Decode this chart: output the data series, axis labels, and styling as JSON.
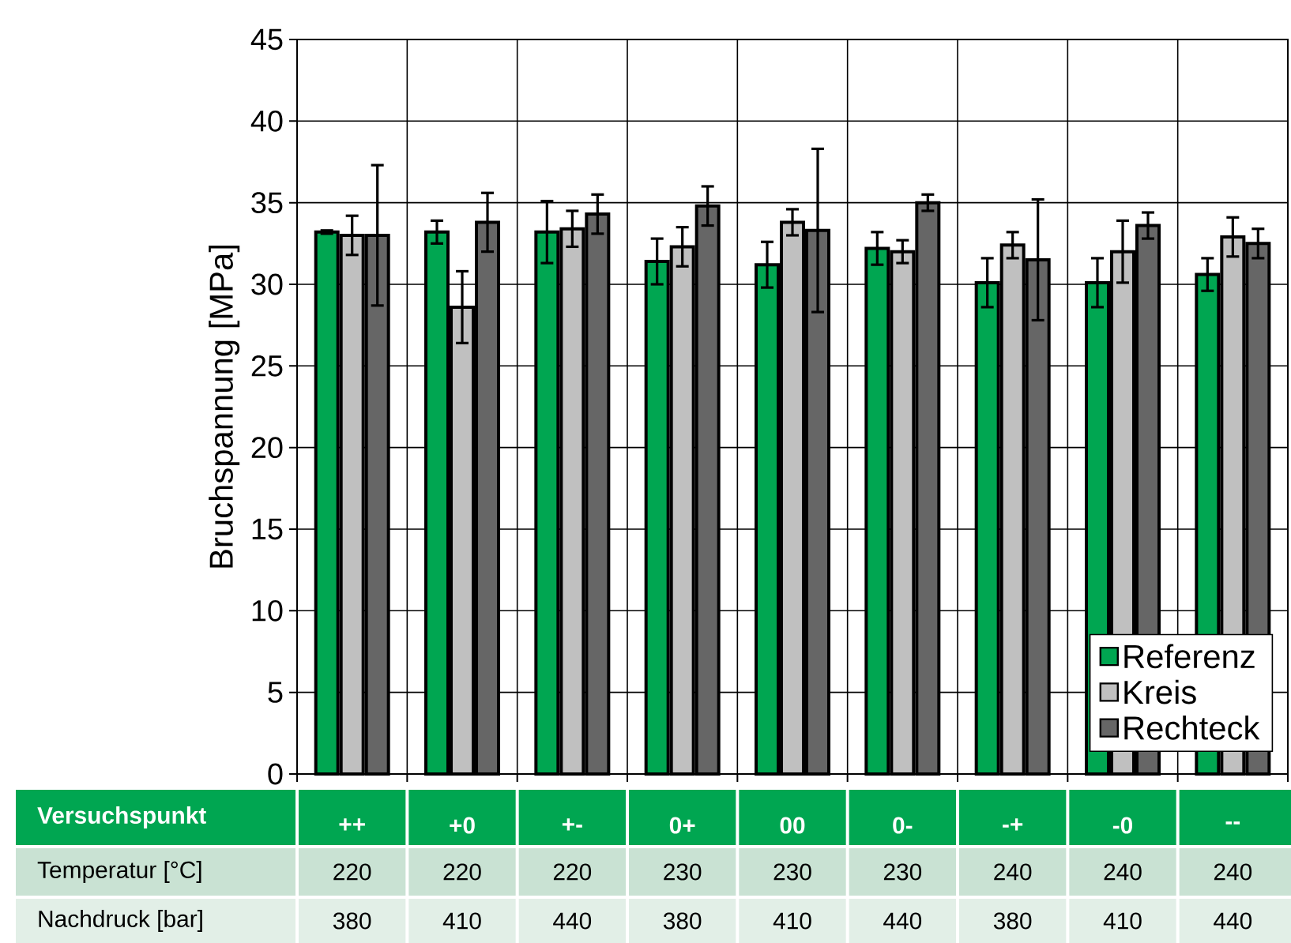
{
  "chart_data": {
    "type": "bar",
    "xlabel": "Versuchspunkt",
    "ylabel": "Bruchspannung  [MPa]",
    "categories": [
      "++",
      "+0",
      "+-",
      "0+",
      "00",
      "0-",
      "-+",
      "-0",
      "--"
    ],
    "series": [
      {
        "name": "Referenz",
        "color": "#00a651",
        "values": [
          33.2,
          33.2,
          33.2,
          31.4,
          31.2,
          32.2,
          30.1,
          30.1,
          30.6
        ],
        "errors": [
          0.1,
          0.7,
          1.9,
          1.4,
          1.4,
          1.0,
          1.5,
          1.5,
          1.0
        ]
      },
      {
        "name": "Kreis",
        "color": "#c0c0c0",
        "values": [
          33.0,
          28.6,
          33.4,
          32.3,
          33.8,
          32.0,
          32.4,
          32.0,
          32.9
        ],
        "errors": [
          1.2,
          2.2,
          1.1,
          1.2,
          0.8,
          0.7,
          0.8,
          1.9,
          1.2
        ]
      },
      {
        "name": "Rechteck",
        "color": "#666666",
        "values": [
          33.0,
          33.8,
          34.3,
          34.8,
          33.3,
          35.0,
          31.5,
          33.6,
          32.5
        ],
        "errors": [
          4.3,
          1.8,
          1.2,
          1.2,
          5.0,
          0.5,
          3.7,
          0.8,
          0.9
        ]
      }
    ],
    "ylim": [
      0,
      45
    ],
    "yticks": [
      0,
      5,
      10,
      15,
      20,
      25,
      30,
      35,
      40,
      45
    ],
    "grid": true,
    "legend": "bottom right",
    "annotations": [
      "Temperatur   [°C]",
      "220",
      "220",
      "220",
      "230",
      "230",
      "230",
      "240",
      "240",
      "240",
      "Nachdruck   [bar]",
      "380",
      "410",
      "440",
      "380",
      "410",
      "440",
      "380",
      "410",
      "440"
    ]
  }
}
